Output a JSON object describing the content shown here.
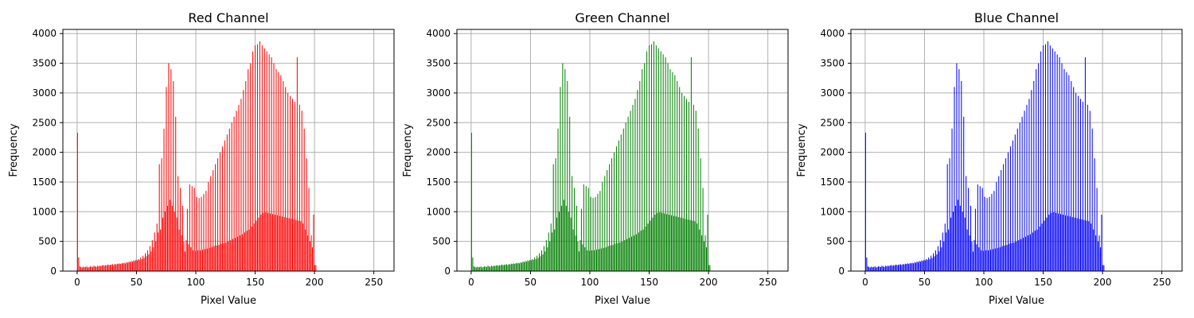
{
  "chart_data": [
    {
      "type": "bar",
      "title": "Red Channel",
      "xlabel": "Pixel Value",
      "ylabel": "Frequency",
      "color": "#ff0000",
      "xlim": [
        -12,
        267
      ],
      "ylim": [
        0,
        4070
      ],
      "xticks": [
        0,
        50,
        100,
        150,
        200,
        250
      ],
      "yticks": [
        0,
        500,
        1000,
        1500,
        2000,
        2500,
        3000,
        3500,
        4000
      ],
      "grid": true,
      "x_range": [
        0,
        255
      ],
      "values": [
        2330,
        230,
        80,
        70,
        60,
        75,
        65,
        70,
        80,
        60,
        70,
        80,
        75,
        70,
        90,
        80,
        70,
        90,
        80,
        90,
        85,
        95,
        100,
        90,
        100,
        95,
        110,
        100,
        105,
        110,
        115,
        100,
        120,
        110,
        125,
        120,
        130,
        120,
        135,
        130,
        140,
        130,
        150,
        140,
        160,
        150,
        170,
        160,
        180,
        170,
        190,
        180,
        200,
        190,
        230,
        200,
        260,
        220,
        300,
        250,
        350,
        280,
        420,
        330,
        520,
        400,
        650,
        500,
        800,
        650,
        1800,
        700,
        1900,
        900,
        2400,
        1000,
        3100,
        1100,
        3500,
        1200,
        3400,
        1100,
        3200,
        1000,
        2600,
        900,
        1600,
        700,
        1400,
        600,
        1100,
        500,
        330,
        520,
        1050,
        450,
        1460,
        400,
        1430,
        350,
        1400,
        340,
        1250,
        350,
        1230,
        350,
        1250,
        360,
        1300,
        370,
        1350,
        380,
        1500,
        390,
        1600,
        400,
        1700,
        420,
        1800,
        430,
        1900,
        440,
        2000,
        460,
        2100,
        470,
        2200,
        480,
        2300,
        500,
        2400,
        520,
        2500,
        540,
        2600,
        560,
        2700,
        580,
        2800,
        600,
        2900,
        620,
        3050,
        650,
        3200,
        680,
        3400,
        700,
        3500,
        750,
        3700,
        800,
        3800,
        850,
        3820,
        900,
        3870,
        950,
        3800,
        980,
        3750,
        990,
        3700,
        980,
        3650,
        970,
        3600,
        960,
        3500,
        950,
        3400,
        940,
        3350,
        930,
        3300,
        920,
        3200,
        910,
        3100,
        900,
        3000,
        890,
        2950,
        880,
        2900,
        870,
        2850,
        860,
        3600,
        850,
        2800,
        840,
        2700,
        800,
        2400,
        700,
        1900,
        600,
        1400,
        500,
        600,
        400,
        950,
        100,
        100,
        0,
        0,
        0,
        0,
        0,
        0,
        0,
        0,
        0,
        0,
        0,
        0,
        0,
        0,
        0,
        0,
        0,
        0,
        0,
        0,
        0,
        0,
        0,
        0,
        0,
        0,
        0,
        0,
        0,
        0,
        0,
        0,
        0,
        0,
        0,
        0,
        0,
        0,
        0,
        0,
        0,
        0,
        0,
        0,
        0,
        0,
        0,
        0,
        0,
        0,
        0,
        0,
        0,
        0
      ]
    },
    {
      "type": "bar",
      "title": "Green Channel",
      "xlabel": "Pixel Value",
      "ylabel": "Frequency",
      "color": "#008000",
      "xlim": [
        -12,
        267
      ],
      "ylim": [
        0,
        4070
      ],
      "xticks": [
        0,
        50,
        100,
        150,
        200,
        250
      ],
      "yticks": [
        0,
        500,
        1000,
        1500,
        2000,
        2500,
        3000,
        3500,
        4000
      ],
      "grid": true,
      "x_range": [
        0,
        255
      ],
      "values": [
        2330,
        230,
        80,
        70,
        60,
        75,
        65,
        70,
        80,
        60,
        70,
        80,
        75,
        70,
        90,
        80,
        70,
        90,
        80,
        90,
        85,
        95,
        100,
        90,
        100,
        95,
        110,
        100,
        105,
        110,
        115,
        100,
        120,
        110,
        125,
        120,
        130,
        120,
        135,
        130,
        140,
        130,
        150,
        140,
        160,
        150,
        170,
        160,
        180,
        170,
        190,
        180,
        200,
        190,
        230,
        200,
        260,
        220,
        300,
        250,
        350,
        280,
        420,
        330,
        520,
        400,
        650,
        500,
        800,
        650,
        1800,
        700,
        1900,
        900,
        2400,
        1000,
        3100,
        1100,
        3500,
        1200,
        3400,
        1100,
        3200,
        1000,
        2600,
        900,
        1600,
        700,
        1400,
        600,
        1100,
        500,
        330,
        520,
        1050,
        450,
        1460,
        400,
        1430,
        350,
        1400,
        340,
        1250,
        350,
        1230,
        350,
        1250,
        360,
        1300,
        370,
        1350,
        380,
        1500,
        390,
        1600,
        400,
        1700,
        420,
        1800,
        430,
        1900,
        440,
        2000,
        460,
        2100,
        470,
        2200,
        480,
        2300,
        500,
        2400,
        520,
        2500,
        540,
        2600,
        560,
        2700,
        580,
        2800,
        600,
        2900,
        620,
        3050,
        650,
        3200,
        680,
        3400,
        700,
        3500,
        750,
        3700,
        800,
        3800,
        850,
        3820,
        900,
        3870,
        950,
        3800,
        980,
        3750,
        990,
        3700,
        980,
        3650,
        970,
        3600,
        960,
        3500,
        950,
        3400,
        940,
        3350,
        930,
        3300,
        920,
        3200,
        910,
        3100,
        900,
        3000,
        890,
        2950,
        880,
        2900,
        870,
        2850,
        860,
        3600,
        850,
        2800,
        840,
        2700,
        800,
        2400,
        700,
        1900,
        600,
        1400,
        500,
        600,
        400,
        950,
        100,
        100,
        0,
        0,
        0,
        0,
        0,
        0,
        0,
        0,
        0,
        0,
        0,
        0,
        0,
        0,
        0,
        0,
        0,
        0,
        0,
        0,
        0,
        0,
        0,
        0,
        0,
        0,
        0,
        0,
        0,
        0,
        0,
        0,
        0,
        0,
        0,
        0,
        0,
        0,
        0,
        0,
        0,
        0,
        0,
        0,
        0,
        0,
        0,
        0,
        0,
        0,
        0,
        0,
        0,
        0
      ]
    },
    {
      "type": "bar",
      "title": "Blue Channel",
      "xlabel": "Pixel Value",
      "ylabel": "Frequency",
      "color": "#0000ff",
      "xlim": [
        -12,
        267
      ],
      "ylim": [
        0,
        4070
      ],
      "xticks": [
        0,
        50,
        100,
        150,
        200,
        250
      ],
      "yticks": [
        0,
        500,
        1000,
        1500,
        2000,
        2500,
        3000,
        3500,
        4000
      ],
      "grid": true,
      "x_range": [
        0,
        255
      ],
      "values": [
        2330,
        230,
        80,
        70,
        60,
        75,
        65,
        70,
        80,
        60,
        70,
        80,
        75,
        70,
        90,
        80,
        70,
        90,
        80,
        90,
        85,
        95,
        100,
        90,
        100,
        95,
        110,
        100,
        105,
        110,
        115,
        100,
        120,
        110,
        125,
        120,
        130,
        120,
        135,
        130,
        140,
        130,
        150,
        140,
        160,
        150,
        170,
        160,
        180,
        170,
        190,
        180,
        200,
        190,
        230,
        200,
        260,
        220,
        300,
        250,
        350,
        280,
        420,
        330,
        520,
        400,
        650,
        500,
        800,
        650,
        1800,
        700,
        1900,
        900,
        2400,
        1000,
        3100,
        1100,
        3500,
        1200,
        3400,
        1100,
        3200,
        1000,
        2600,
        900,
        1600,
        700,
        1400,
        600,
        1100,
        500,
        330,
        520,
        1050,
        450,
        1460,
        400,
        1430,
        350,
        1400,
        340,
        1250,
        350,
        1230,
        350,
        1250,
        360,
        1300,
        370,
        1350,
        380,
        1500,
        390,
        1600,
        400,
        1700,
        420,
        1800,
        430,
        1900,
        440,
        2000,
        460,
        2100,
        470,
        2200,
        480,
        2300,
        500,
        2400,
        520,
        2500,
        540,
        2600,
        560,
        2700,
        580,
        2800,
        600,
        2900,
        620,
        3050,
        650,
        3200,
        680,
        3400,
        700,
        3500,
        750,
        3700,
        800,
        3800,
        850,
        3820,
        900,
        3870,
        950,
        3800,
        980,
        3750,
        990,
        3700,
        980,
        3650,
        970,
        3600,
        960,
        3500,
        950,
        3400,
        940,
        3350,
        930,
        3300,
        920,
        3200,
        910,
        3100,
        900,
        3000,
        890,
        2950,
        880,
        2900,
        870,
        2850,
        860,
        3600,
        850,
        2800,
        840,
        2700,
        800,
        2400,
        700,
        1900,
        600,
        1400,
        500,
        600,
        400,
        950,
        100,
        100,
        0,
        0,
        0,
        0,
        0,
        0,
        0,
        0,
        0,
        0,
        0,
        0,
        0,
        0,
        0,
        0,
        0,
        0,
        0,
        0,
        0,
        0,
        0,
        0,
        0,
        0,
        0,
        0,
        0,
        0,
        0,
        0,
        0,
        0,
        0,
        0,
        0,
        0,
        0,
        0,
        0,
        0,
        0,
        0,
        0,
        0,
        0,
        0,
        0,
        0,
        0,
        0,
        0,
        0
      ]
    }
  ]
}
